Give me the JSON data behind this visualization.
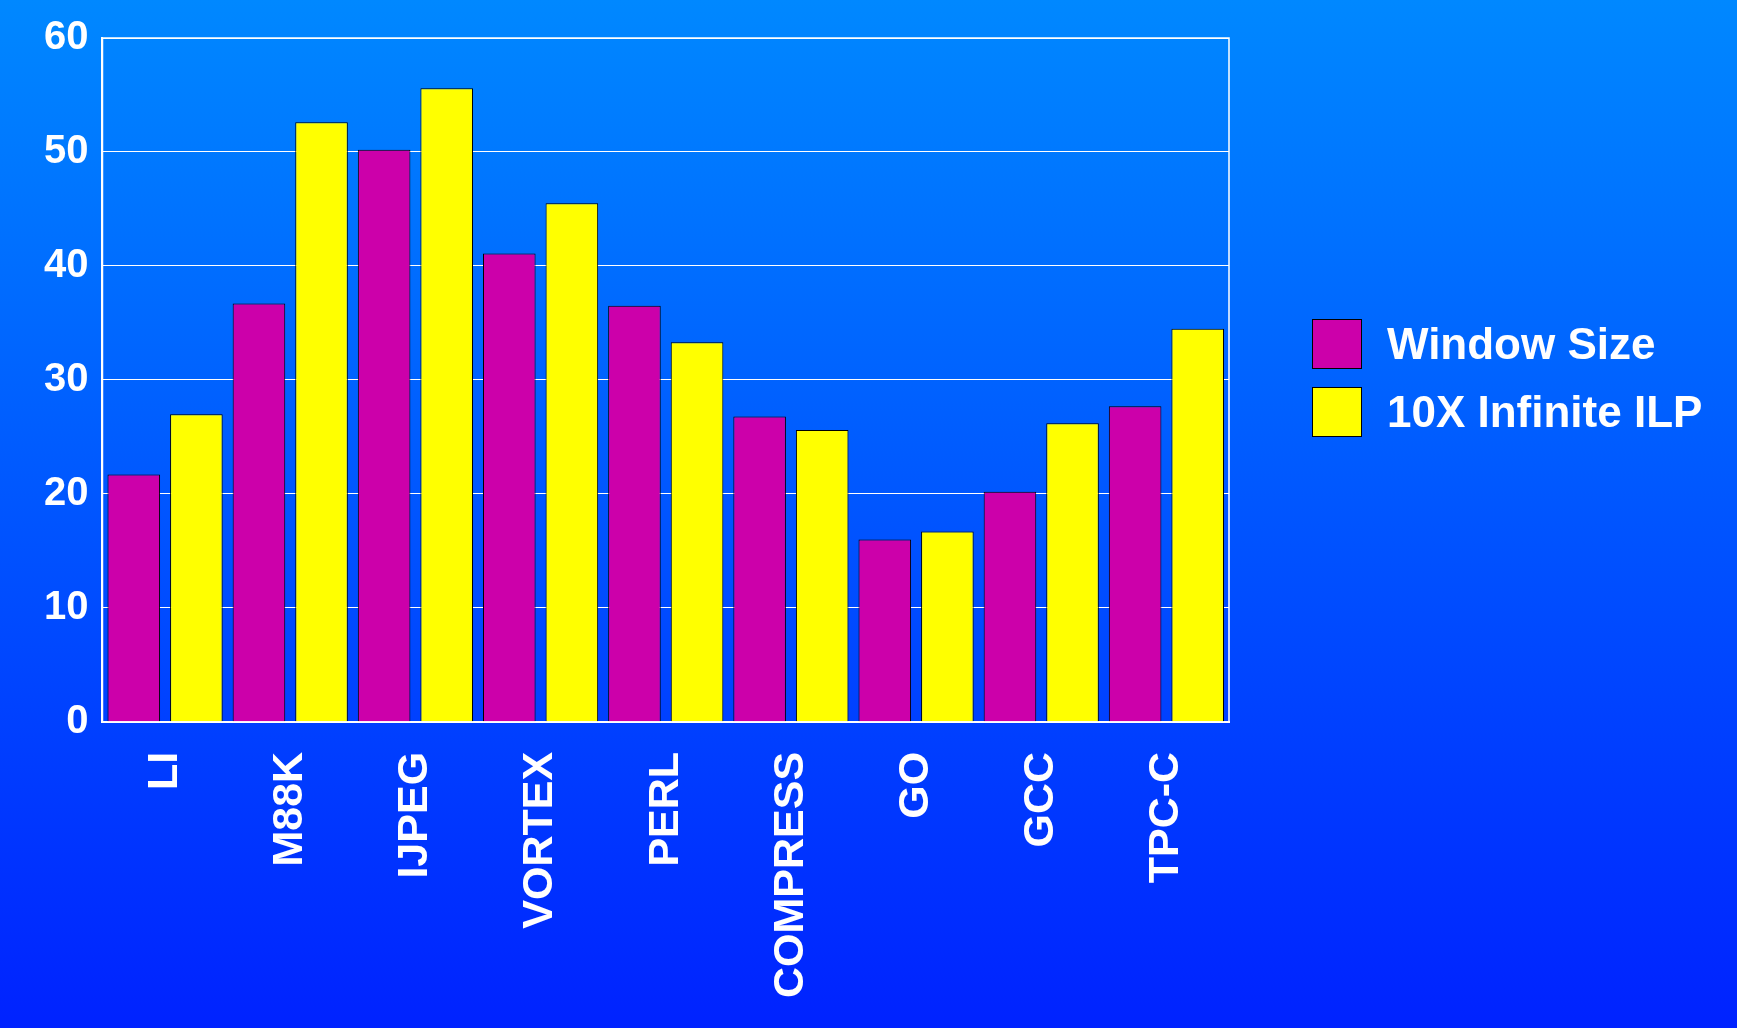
{
  "chart_data": {
    "type": "bar",
    "categories": [
      "LI",
      "M88K",
      "IJPEG",
      "VORTEX",
      "PERL",
      "COMPRESS",
      "GO",
      "GCC",
      "TPC-C"
    ],
    "series": [
      {
        "name": "Window Size",
        "color": "#cc00aa",
        "values": [
          21.7,
          36.7,
          50.2,
          41.1,
          36.5,
          26.8,
          16.0,
          20.2,
          27.7
        ]
      },
      {
        "name": "10X Infinite ILP",
        "color": "#ffff00",
        "values": [
          27.0,
          52.6,
          55.6,
          45.5,
          33.3,
          25.6,
          16.7,
          26.2,
          34.5
        ]
      }
    ],
    "ylim": [
      0,
      60
    ],
    "yticks": [
      0,
      10,
      20,
      30,
      40,
      50,
      60
    ],
    "grid": "y",
    "legend": "right"
  }
}
